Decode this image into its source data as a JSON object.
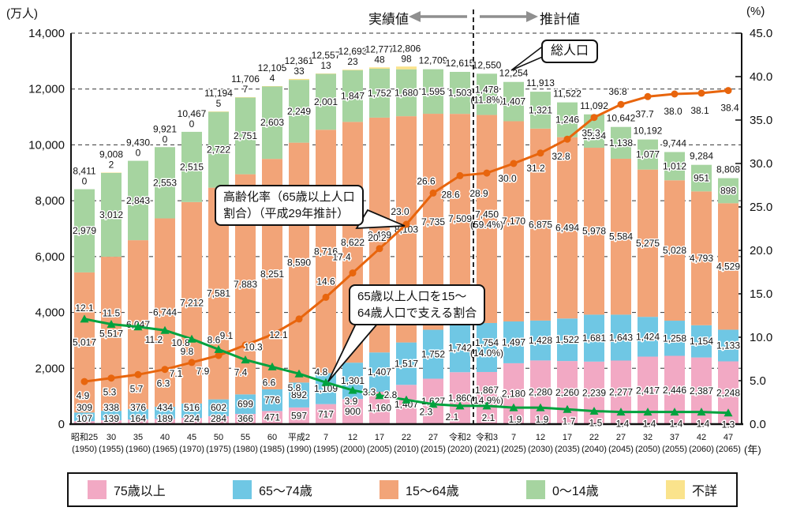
{
  "header": {
    "actual_label": "実績値",
    "estimate_label": "推計値"
  },
  "annotations": {
    "total_pop": "総人口",
    "aging": {
      "line1": "高齢化率（65歳以上人口",
      "line2": "割合）（平成29年推計）"
    },
    "support": {
      "line1": "65歳以上人口を15〜",
      "line2": "64歳人口で支える割合"
    }
  },
  "chart_data": {
    "type": "bar",
    "subtype": "stacked-bar-with-lines",
    "unit_left": "(万人)",
    "unit_right": "(%)",
    "unit_year": "(年)",
    "left_axis_ticks": [
      "0",
      "2,000",
      "4,000",
      "6,000",
      "8,000",
      "10,000",
      "12,000",
      "14,000"
    ],
    "left_axis_max": 14000,
    "right_axis_ticks": [
      "0.0",
      "5.0",
      "10.0",
      "15.0",
      "20.0",
      "25.0",
      "30.0",
      "35.0",
      "40.0",
      "45.0"
    ],
    "right_axis_max": 45,
    "grid": "dashed-horizontal",
    "divider_between": [
      "令和2 (2020)",
      "令和3 (2021)"
    ],
    "years": [
      {
        "era": "昭和25",
        "west": "(1950)"
      },
      {
        "era": "30",
        "west": "(1955)"
      },
      {
        "era": "35",
        "west": "(1960)"
      },
      {
        "era": "40",
        "west": "(1965)"
      },
      {
        "era": "45",
        "west": "(1970)"
      },
      {
        "era": "50",
        "west": "(1975)"
      },
      {
        "era": "55",
        "west": "(1980)"
      },
      {
        "era": "60",
        "west": "(1985)"
      },
      {
        "era": "平成2",
        "west": "(1990)"
      },
      {
        "era": "7",
        "west": "(1995)"
      },
      {
        "era": "12",
        "west": "(2000)"
      },
      {
        "era": "17",
        "west": "(2005)"
      },
      {
        "era": "22",
        "west": "(2010)"
      },
      {
        "era": "27",
        "west": "(2015)"
      },
      {
        "era": "令和2",
        "west": "(2020)"
      },
      {
        "era": "令和3",
        "west": "(2021)"
      },
      {
        "era": "7",
        "west": "(2025)"
      },
      {
        "era": "12",
        "west": "(2030)"
      },
      {
        "era": "17",
        "west": "(2035)"
      },
      {
        "era": "22",
        "west": "(2040)"
      },
      {
        "era": "27",
        "west": "(2045)"
      },
      {
        "era": "32",
        "west": "(2050)"
      },
      {
        "era": "37",
        "west": "(2055)"
      },
      {
        "era": "42",
        "west": "(2060)"
      },
      {
        "era": "47",
        "west": "(2065)"
      }
    ],
    "totals": [
      8411,
      9008,
      9430,
      9921,
      10467,
      11194,
      11706,
      12105,
      12361,
      12557,
      12693,
      12777,
      12806,
      12709,
      12615,
      12550,
      12254,
      11913,
      11522,
      11092,
      10642,
      10192,
      9744,
      9284,
      8808
    ],
    "series": [
      {
        "name": "75歳以上",
        "color": "#F2A9C4",
        "values": [
          107,
          139,
          164,
          189,
          224,
          284,
          366,
          471,
          597,
          717,
          900,
          1160,
          1407,
          1627,
          1860,
          1867,
          2180,
          2280,
          2260,
          2239,
          2277,
          2417,
          2446,
          2387,
          2248
        ]
      },
      {
        "name": "65〜74歳",
        "color": "#6FC7E4",
        "values": [
          309,
          338,
          376,
          434,
          516,
          602,
          699,
          776,
          892,
          1109,
          1301,
          1407,
          1517,
          1752,
          1742,
          1754,
          1497,
          1428,
          1522,
          1681,
          1643,
          1424,
          1258,
          1154,
          1133
        ]
      },
      {
        "name": "15〜64歳",
        "color": "#F2A478",
        "values": [
          5017,
          5517,
          6047,
          6744,
          7212,
          7581,
          7883,
          8251,
          8590,
          8716,
          8622,
          8409,
          8103,
          7735,
          7509,
          7450,
          7170,
          6875,
          6494,
          5978,
          5584,
          5275,
          5028,
          4793,
          4529
        ]
      },
      {
        "name": "0〜14歳",
        "color": "#A6D4A0",
        "values": [
          2979,
          3012,
          2843,
          2553,
          2515,
          2722,
          2751,
          2603,
          2249,
          2001,
          1847,
          1752,
          1680,
          1595,
          1503,
          1478,
          1407,
          1321,
          1246,
          1194,
          1138,
          1077,
          1012,
          951,
          898
        ]
      },
      {
        "name": "不詳",
        "color": "#FAE38C",
        "values": [
          0,
          2,
          0,
          0,
          0,
          5,
          7,
          4,
          33,
          13,
          23,
          48,
          98,
          null,
          null,
          null,
          null,
          null,
          null,
          null,
          null,
          null,
          null,
          null,
          null
        ]
      }
    ],
    "notes_2021": [
      "(14.9%)",
      "(14.0%)",
      "(59.4%)",
      "(11.8%)",
      null
    ],
    "lines": [
      {
        "name": "高齢化率（65歳以上人口割合）（平成29年推計）",
        "color": "#E8650D",
        "marker": "circle",
        "axis": "right",
        "values": [
          4.9,
          5.3,
          5.7,
          6.3,
          7.1,
          7.9,
          9.1,
          10.3,
          12.1,
          14.6,
          17.4,
          20.2,
          23.0,
          26.6,
          28.6,
          28.9,
          30.0,
          31.2,
          32.8,
          35.3,
          36.8,
          37.7,
          38.0,
          38.1,
          38.4
        ]
      },
      {
        "name": "65歳以上人口を15〜64歳人口で支える割合",
        "color": "#00A23E",
        "marker": "triangle",
        "axis": "right",
        "values": [
          12.1,
          11.5,
          11.2,
          10.8,
          9.8,
          8.6,
          7.4,
          6.6,
          5.8,
          4.8,
          3.9,
          3.3,
          2.8,
          2.3,
          2.1,
          2.1,
          1.9,
          1.9,
          1.7,
          1.5,
          1.4,
          1.4,
          1.4,
          1.4,
          1.3
        ]
      }
    ]
  }
}
